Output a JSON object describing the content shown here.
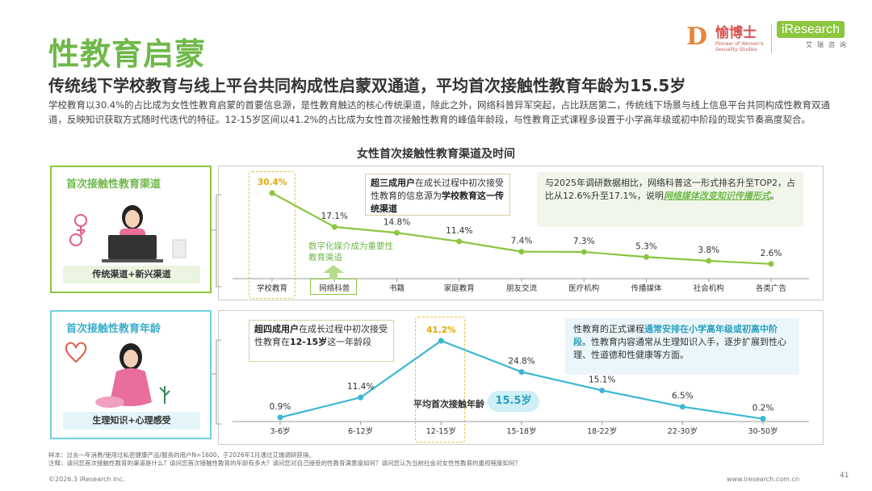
{
  "page": {
    "title": "性教育启蒙",
    "subtitle": "传统线下学校教育与线上平台共同构成性启蒙双通道，平均首次接触性教育年龄为15.5岁",
    "description": "学校教育以30.4%的占比成为女性性教育启蒙的首要信息源，是性教育触达的核心传统渠道，除此之外，网络科普异军突起，占比跃居第二，传统线下场景与线上信息平台共同构成性教育双通道，反映知识获取方式随时代迭代的特征。12-15岁区间以41.2%的占比成为女性首次接触性教育的峰值年龄段，与性教育正式课程多设置于小学高年级或初中阶段的现实节奏高度契合。",
    "chart_title": "女性首次接触性教育渠道及时间",
    "logo_left_name": "愉博士",
    "logo_left_sub": "Pioneer of Women's Sexuality Studies",
    "logo_right_brand": "iResearch",
    "logo_right_cn": "艾瑞咨询",
    "panel1_label": "首次接触性教育渠道",
    "panel1_footer": "传统渠道+新兴渠道",
    "panel2_label": "首次接触性教育年龄",
    "panel2_footer": "生理知识+心理感受",
    "note1_a": "超三成用户",
    "note1_b": "在成长过程中初次接受性教育的信息源为",
    "note1_c": "学校教育这一传统渠道",
    "note_green_a": "与2025年调研数据相比，网络科普这一形式排名升至TOP2，占比从12.6%升至17.1%，说明",
    "note_green_hl": "网络媒体改变知识传播形式",
    "note_green_end": "。",
    "up_note": "数字化媒介成为重要性教育渠道",
    "note2_a": "超四成用户",
    "note2_b": "在成长过程中初次接受性教育在",
    "note2_c": "12-15岁",
    "note2_d": "这一年龄段",
    "note_blue_a": "性教育的正式课程",
    "note_blue_hl": "通常安排在小学高年级或初高中阶段",
    "note_blue_b": "。性教育内容通常从生理知识入手，逐步扩展到性心理、性道德和性健康等方面。",
    "avg_label": "平均首次接触年龄",
    "avg_value": "15.5岁",
    "footnote_1": "样本：过去一年消费/使用过私密健康产品/服务的用户N=1600，于2026年1月通过艾瑞调研获得。",
    "footnote_2": "注释：请问您首次接触性教育的渠道是什么？请问您首次接触性教育的年龄有多大？请问您对自己接受的性教育满意度如何？请问您认为当前社会对女性性教育的重视程度如何？",
    "copyright": "©2026.3 iResearch Inc.",
    "url": "www.iresearch.com.cn",
    "page_number": "41"
  },
  "colors": {
    "green": "#8cc63f",
    "blue": "#3ab7d4",
    "title_green": "#6fb84a",
    "highlight": "#e8c24a"
  },
  "chart_data": [
    {
      "type": "line",
      "title": "首次接触性教育渠道",
      "categories": [
        "学校教育",
        "网络科普",
        "书籍",
        "家庭教育",
        "朋友交流",
        "医疗机构",
        "传播媒体",
        "社会机构",
        "各类广告"
      ],
      "series": [
        {
          "values": [
            30.4,
            17.1,
            14.8,
            11.4,
            7.4,
            7.3,
            5.3,
            3.8,
            2.6
          ]
        }
      ],
      "value_labels": [
        "30.4%",
        "17.1%",
        "14.8%",
        "11.4%",
        "7.4%",
        "7.3%",
        "5.3%",
        "3.8%",
        "2.6%"
      ],
      "color": "#8cc63f"
    },
    {
      "type": "line",
      "title": "首次接触性教育年龄",
      "categories": [
        "3-6岁",
        "6-12岁",
        "12-15岁",
        "15-18岁",
        "18-22岁",
        "22-30岁",
        "30-50岁"
      ],
      "series": [
        {
          "values": [
            0.9,
            11.4,
            41.2,
            24.8,
            15.1,
            6.5,
            0.2
          ]
        }
      ],
      "value_labels": [
        "0.9%",
        "11.4%",
        "41.2%",
        "24.8%",
        "15.1%",
        "6.5%",
        "0.2%"
      ],
      "color": "#3ab7d4"
    }
  ]
}
